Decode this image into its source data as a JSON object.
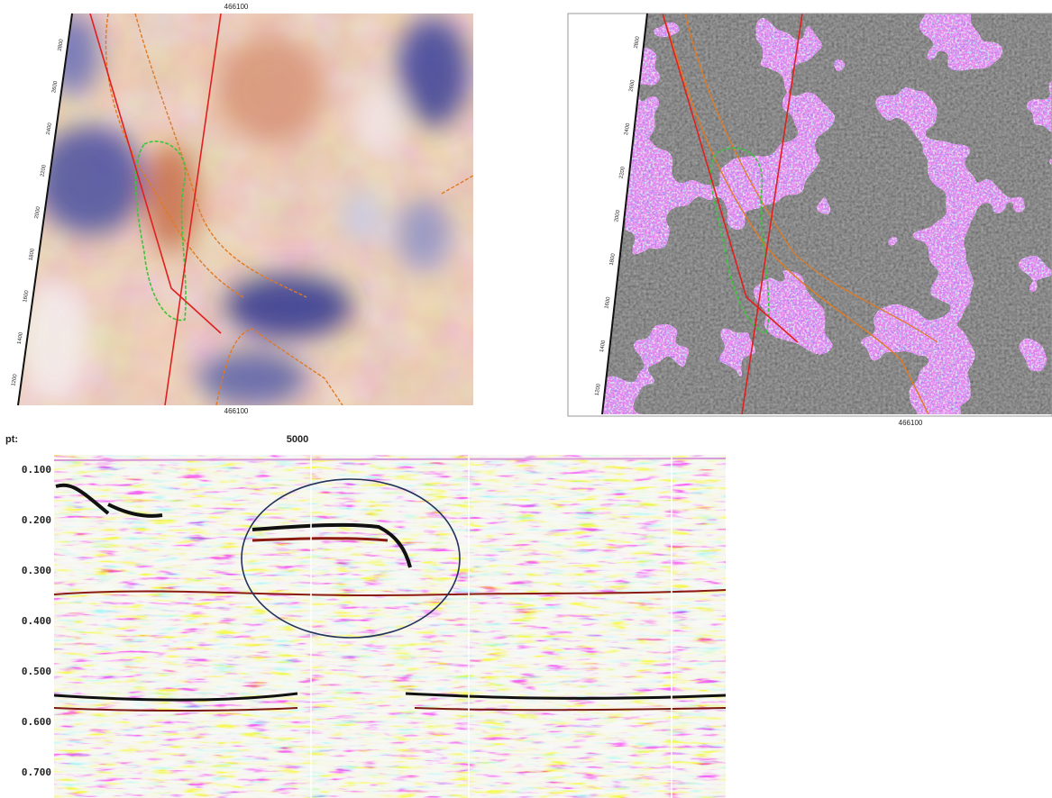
{
  "map_left": {
    "top_label": "466100",
    "bottom_label": "466100",
    "y_labels": [
      "2800",
      "2600",
      "2400",
      "2200",
      "2000",
      "1800",
      "1600",
      "1400",
      "1200"
    ]
  },
  "map_right": {
    "bottom_label": "466100",
    "y_labels": [
      "2800",
      "2600",
      "2400",
      "2200",
      "2000",
      "1800",
      "1600",
      "1400",
      "1200"
    ]
  },
  "section": {
    "corner_label": "pt:",
    "trace_label": "5000",
    "time_labels": [
      "0.100",
      "0.200",
      "0.300",
      "0.400",
      "0.500",
      "0.600",
      "0.700"
    ]
  }
}
